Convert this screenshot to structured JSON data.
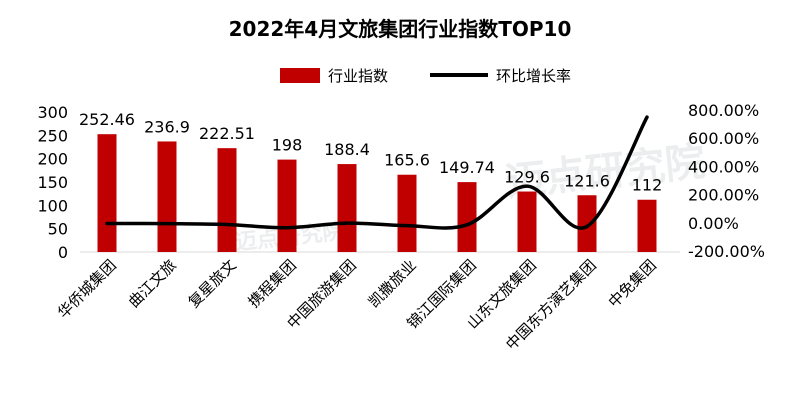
{
  "chart_data": {
    "type": "bar",
    "title": "2022年4月文旅集团行业指数TOP10",
    "categories": [
      "华侨城集团",
      "曲江文旅",
      "复星旅文",
      "携程集团",
      "中国旅游集团",
      "凯撒旅业",
      "锦江国际集团",
      "山东文旅集团",
      "中国东方演艺集团",
      "中免集团"
    ],
    "series": [
      {
        "name": "行业指数",
        "chart": "bar",
        "axis": "left",
        "color": "#c00000",
        "values": [
          252.46,
          236.9,
          222.51,
          198,
          188.4,
          165.6,
          149.74,
          129.6,
          121.6,
          112
        ],
        "labels": [
          "252.46",
          "236.9",
          "222.51",
          "198",
          "188.4",
          "165.6",
          "149.74",
          "129.6",
          "121.6",
          "112"
        ]
      },
      {
        "name": "环比增长率",
        "chart": "line",
        "axis": "right",
        "smooth": true,
        "color": "#000000",
        "values": [
          -0.05,
          -0.06,
          -0.12,
          -0.35,
          -0.02,
          -0.2,
          -0.14,
          2.6,
          -0.26,
          7.5
        ]
      }
    ],
    "y_left": {
      "ylim": [
        0,
        300
      ],
      "ticks": [
        "0",
        "50",
        "100",
        "150",
        "200",
        "250",
        "300"
      ]
    },
    "y_right": {
      "ylim": [
        -2,
        8
      ],
      "ticks": [
        "-200.00%",
        "0.00%",
        "200.00%",
        "400.00%",
        "600.00%",
        "800.00%"
      ]
    },
    "legend_position": "top",
    "grid": false
  },
  "watermark": "迈点研究院"
}
